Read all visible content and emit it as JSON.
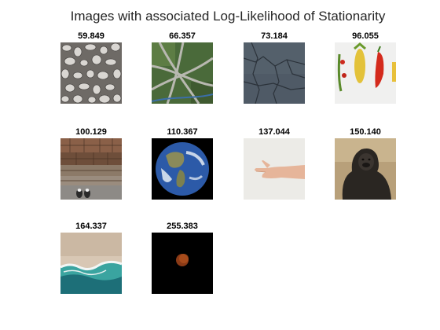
{
  "chart_data": {
    "type": "image-grid",
    "title": "Images with associated Log-Likelihood of Stationarity",
    "columns": 4,
    "images": [
      {
        "value": "59.849",
        "subject": "pebbles-icon"
      },
      {
        "value": "66.357",
        "subject": "highway-interchange-icon"
      },
      {
        "value": "73.184",
        "subject": "cracked-ground-icon"
      },
      {
        "value": "96.055",
        "subject": "vegetables-icon"
      },
      {
        "value": "100.129",
        "subject": "stone-steps-icon"
      },
      {
        "value": "110.367",
        "subject": "earth-icon"
      },
      {
        "value": "137.044",
        "subject": "hand-icon"
      },
      {
        "value": "150.140",
        "subject": "gorilla-icon"
      },
      {
        "value": "164.337",
        "subject": "beach-waves-icon"
      },
      {
        "value": "255.383",
        "subject": "eclipsed-moon-icon"
      }
    ]
  }
}
